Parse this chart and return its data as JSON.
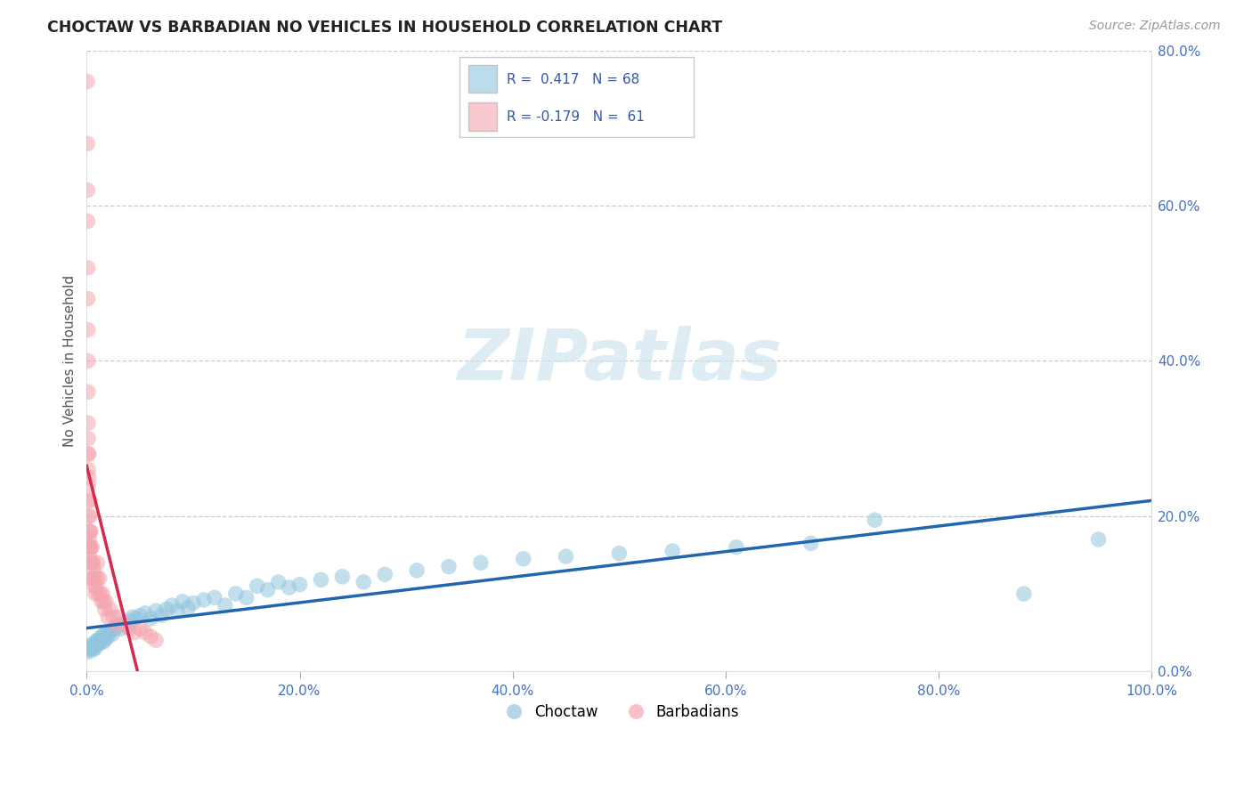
{
  "title": "CHOCTAW VS BARBADIAN NO VEHICLES IN HOUSEHOLD CORRELATION CHART",
  "source_text": "Source: ZipAtlas.com",
  "ylabel": "No Vehicles in Household",
  "xlim": [
    0,
    1.0
  ],
  "ylim": [
    0,
    0.8
  ],
  "xtick_vals": [
    0.0,
    0.2,
    0.4,
    0.6,
    0.8,
    1.0
  ],
  "xtick_labels": [
    "0.0%",
    "20.0%",
    "40.0%",
    "60.0%",
    "80.0%",
    "100.0%"
  ],
  "ytick_vals": [
    0.0,
    0.2,
    0.4,
    0.6,
    0.8
  ],
  "ytick_labels": [
    "0.0%",
    "20.0%",
    "40.0%",
    "60.0%",
    "80.0%"
  ],
  "blue_R": 0.417,
  "blue_N": 68,
  "pink_R": -0.179,
  "pink_N": 61,
  "blue_color": "#92c5de",
  "pink_color": "#f4a6b0",
  "blue_line_color": "#2166ac",
  "pink_line_color": "#d6294b",
  "legend_label_blue": "Choctaw",
  "legend_label_pink": "Barbadians",
  "blue_scatter_x": [
    0.001,
    0.002,
    0.003,
    0.004,
    0.005,
    0.006,
    0.007,
    0.008,
    0.009,
    0.01,
    0.011,
    0.012,
    0.013,
    0.014,
    0.015,
    0.016,
    0.017,
    0.018,
    0.019,
    0.02,
    0.022,
    0.024,
    0.026,
    0.028,
    0.03,
    0.032,
    0.035,
    0.038,
    0.04,
    0.043,
    0.046,
    0.05,
    0.055,
    0.06,
    0.065,
    0.07,
    0.075,
    0.08,
    0.085,
    0.09,
    0.095,
    0.1,
    0.11,
    0.12,
    0.13,
    0.14,
    0.15,
    0.16,
    0.17,
    0.18,
    0.19,
    0.2,
    0.22,
    0.24,
    0.26,
    0.28,
    0.31,
    0.34,
    0.37,
    0.41,
    0.45,
    0.5,
    0.55,
    0.61,
    0.68,
    0.74,
    0.88,
    0.95
  ],
  "blue_scatter_y": [
    0.025,
    0.03,
    0.028,
    0.032,
    0.035,
    0.028,
    0.033,
    0.03,
    0.038,
    0.04,
    0.035,
    0.042,
    0.038,
    0.045,
    0.04,
    0.038,
    0.048,
    0.042,
    0.05,
    0.045,
    0.052,
    0.048,
    0.055,
    0.058,
    0.06,
    0.055,
    0.062,
    0.058,
    0.065,
    0.07,
    0.068,
    0.072,
    0.075,
    0.068,
    0.078,
    0.072,
    0.08,
    0.085,
    0.078,
    0.09,
    0.082,
    0.088,
    0.092,
    0.095,
    0.085,
    0.1,
    0.095,
    0.11,
    0.105,
    0.115,
    0.108,
    0.112,
    0.118,
    0.122,
    0.115,
    0.125,
    0.13,
    0.135,
    0.14,
    0.145,
    0.148,
    0.152,
    0.155,
    0.16,
    0.165,
    0.195,
    0.1,
    0.17
  ],
  "pink_scatter_x": [
    0.0005,
    0.0007,
    0.0008,
    0.0009,
    0.001,
    0.001,
    0.001,
    0.0012,
    0.0013,
    0.0014,
    0.0015,
    0.0015,
    0.0016,
    0.0017,
    0.002,
    0.002,
    0.002,
    0.002,
    0.002,
    0.0022,
    0.0023,
    0.0025,
    0.003,
    0.003,
    0.003,
    0.003,
    0.004,
    0.004,
    0.004,
    0.005,
    0.005,
    0.005,
    0.006,
    0.006,
    0.007,
    0.007,
    0.008,
    0.008,
    0.009,
    0.01,
    0.01,
    0.011,
    0.012,
    0.013,
    0.014,
    0.015,
    0.016,
    0.017,
    0.018,
    0.02,
    0.022,
    0.025,
    0.028,
    0.03,
    0.035,
    0.04,
    0.045,
    0.05,
    0.055,
    0.06,
    0.065
  ],
  "pink_scatter_y": [
    0.76,
    0.68,
    0.62,
    0.58,
    0.52,
    0.48,
    0.44,
    0.4,
    0.36,
    0.32,
    0.3,
    0.28,
    0.26,
    0.24,
    0.28,
    0.25,
    0.22,
    0.2,
    0.18,
    0.17,
    0.16,
    0.15,
    0.22,
    0.2,
    0.18,
    0.16,
    0.18,
    0.16,
    0.14,
    0.16,
    0.14,
    0.12,
    0.14,
    0.12,
    0.13,
    0.11,
    0.12,
    0.1,
    0.11,
    0.14,
    0.12,
    0.1,
    0.12,
    0.1,
    0.09,
    0.1,
    0.09,
    0.08,
    0.09,
    0.07,
    0.08,
    0.07,
    0.06,
    0.07,
    0.06,
    0.055,
    0.05,
    0.055,
    0.05,
    0.045,
    0.04
  ]
}
